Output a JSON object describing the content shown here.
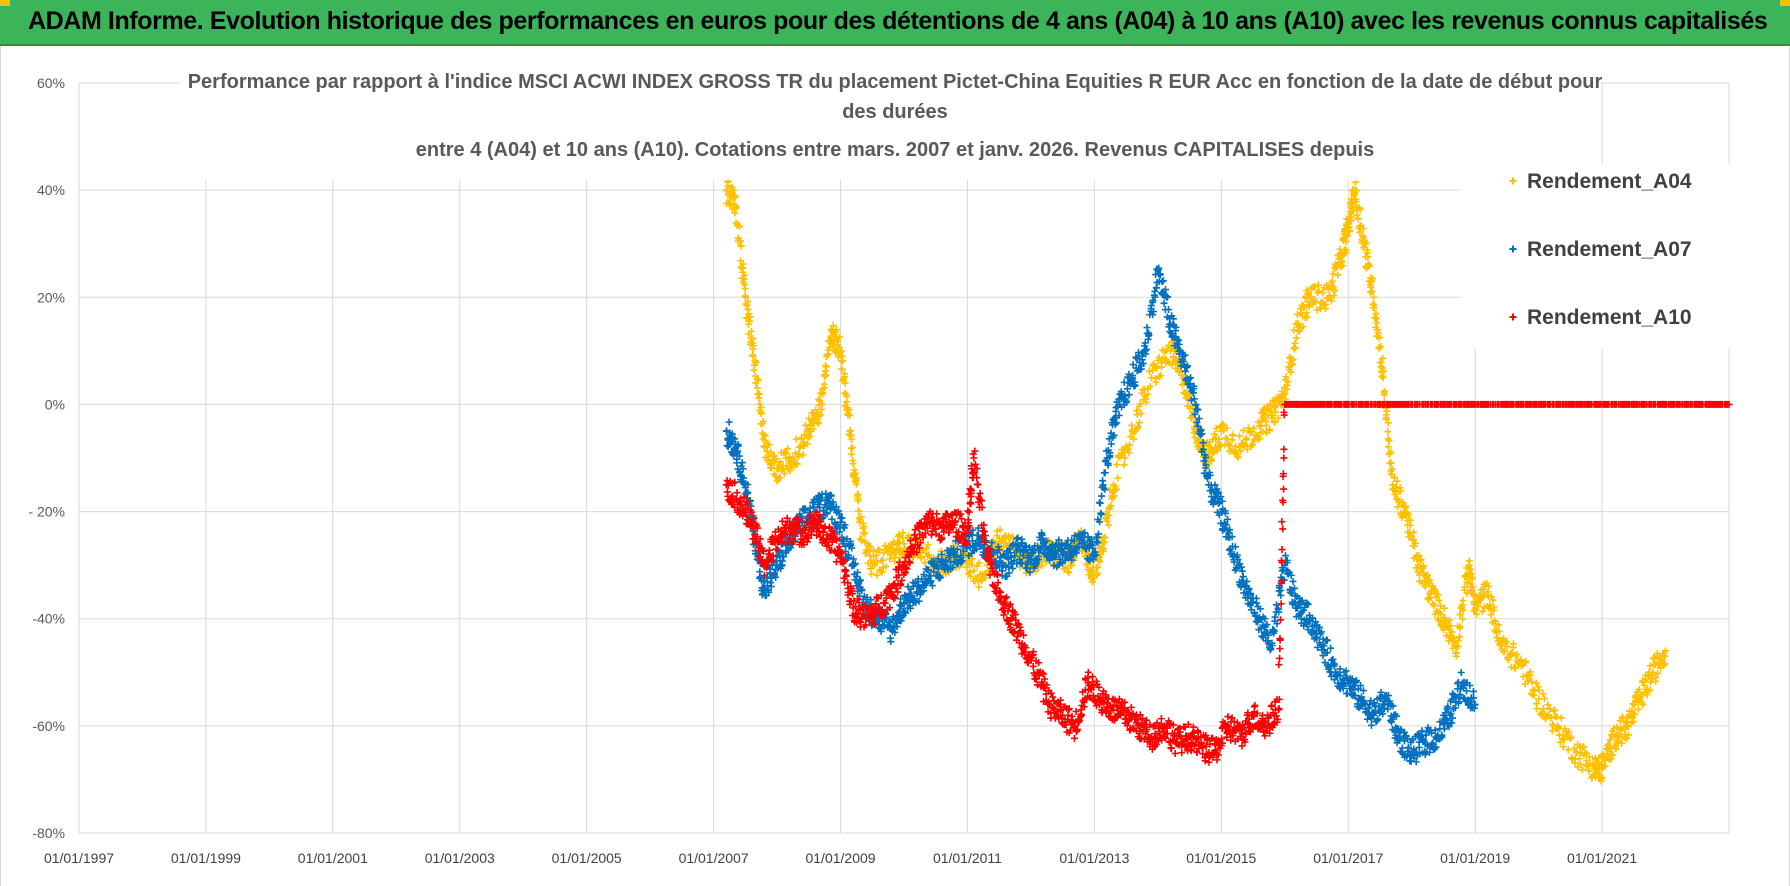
{
  "banner": {
    "text": "ADAM Informe. Evolution historique des performances en euros pour des détentions de 4 ans (A04) à 10 ans (A10) avec les revenus connus capitalisés"
  },
  "colors": {
    "banner": "#3cb55a",
    "accent": "#f2c200",
    "A04": "#ffc000",
    "A07": "#0070c0",
    "A10": "#ff0000",
    "grid": "#d9d9d9"
  },
  "chart_data": {
    "type": "scatter",
    "title_lines": [
      "Performance par rapport à l'indice MSCI ACWI INDEX GROSS TR  du placement Pictet-China Equities R EUR Acc en fonction de la date de début pour",
      "des durées",
      "entre 4 (A04) et 10 ans (A10). Cotations entre mars. 2007 et janv. 2026. Revenus CAPITALISES depuis"
    ],
    "xlabel": "",
    "ylabel": "",
    "xlim": [
      1997.0,
      2023.0
    ],
    "ylim": [
      -80,
      60
    ],
    "y_ticks": [
      60,
      40,
      20,
      0,
      -20,
      -40,
      -60,
      -80
    ],
    "y_tick_labels": [
      "60%",
      "40%",
      "20%",
      "0%",
      "- 20%",
      "-40%",
      "-60%",
      "-80%"
    ],
    "x_ticks": [
      1997,
      1999,
      2001,
      2003,
      2005,
      2007,
      2009,
      2011,
      2013,
      2015,
      2017,
      2019,
      2021
    ],
    "x_tick_labels": [
      "01/01/1997",
      "01/01/1999",
      "01/01/2001",
      "01/01/2003",
      "01/01/2005",
      "01/01/2007",
      "01/01/2009",
      "01/01/2011",
      "01/01/2013",
      "01/01/2015",
      "01/01/2017",
      "01/01/2019",
      "01/01/2021"
    ],
    "grid": true,
    "legend_position": "top-right",
    "series": [
      {
        "name": "Rendement_A04",
        "color": "#ffc000",
        "x": [
          2007.2,
          2007.35,
          2007.5,
          2007.65,
          2007.8,
          2008.0,
          2008.25,
          2008.5,
          2008.7,
          2008.85,
          2009.0,
          2009.15,
          2009.3,
          2009.5,
          2009.8,
          2010.0,
          2010.3,
          2010.6,
          2010.9,
          2011.2,
          2011.5,
          2011.8,
          2012.0,
          2012.3,
          2012.6,
          2012.8,
          2012.95,
          2013.1,
          2013.3,
          2013.6,
          2013.9,
          2014.2,
          2014.4,
          2014.6,
          2014.8,
          2015.0,
          2015.3,
          2015.6,
          2015.8,
          2016.0,
          2016.2,
          2016.4,
          2016.7,
          2016.9,
          2017.0,
          2017.1,
          2017.25,
          2017.4,
          2017.55,
          2017.7,
          2017.9,
          2018.1,
          2018.3,
          2018.5,
          2018.7,
          2018.9,
          2019.0,
          2019.2,
          2019.4,
          2019.7,
          2020.0,
          2020.3,
          2020.6,
          2020.9,
          2021.0,
          2021.2,
          2021.4,
          2021.6,
          2021.8,
          2022.0
        ],
        "y": [
          40,
          37,
          20,
          8,
          -8,
          -12,
          -10,
          -5,
          0,
          14,
          10,
          -5,
          -22,
          -30,
          -28,
          -26,
          -27,
          -30,
          -28,
          -32,
          -25,
          -28,
          -30,
          -27,
          -29,
          -25,
          -32,
          -28,
          -15,
          -5,
          5,
          10,
          5,
          -5,
          -10,
          -5,
          -8,
          -4,
          -2,
          2,
          15,
          20,
          20,
          28,
          33,
          40,
          30,
          20,
          5,
          -15,
          -20,
          -30,
          -35,
          -40,
          -45,
          -30,
          -38,
          -35,
          -45,
          -48,
          -55,
          -60,
          -65,
          -68,
          -68,
          -62,
          -60,
          -55,
          -50,
          -46
        ]
      },
      {
        "name": "Rendement_A07",
        "color": "#0070c0",
        "x": [
          2007.2,
          2007.35,
          2007.5,
          2007.65,
          2007.8,
          2008.0,
          2008.2,
          2008.4,
          2008.6,
          2008.8,
          2009.0,
          2009.2,
          2009.4,
          2009.6,
          2009.8,
          2010.0,
          2010.2,
          2010.4,
          2010.6,
          2010.8,
          2011.0,
          2011.2,
          2011.4,
          2011.6,
          2011.8,
          2012.0,
          2012.2,
          2012.4,
          2012.6,
          2012.8,
          2013.0,
          2013.2,
          2013.4,
          2013.6,
          2013.8,
          2014.0,
          2014.2,
          2014.4,
          2014.6,
          2014.8,
          2015.0,
          2015.2,
          2015.4,
          2015.6,
          2015.8,
          2016.0,
          2016.2,
          2016.4,
          2016.6,
          2016.8,
          2017.0,
          2017.2,
          2017.4,
          2017.6,
          2017.8,
          2018.0,
          2018.2,
          2018.4,
          2018.6,
          2018.8,
          2019.0
        ],
        "y": [
          -5,
          -8,
          -15,
          -25,
          -35,
          -30,
          -25,
          -22,
          -20,
          -18,
          -22,
          -30,
          -38,
          -40,
          -42,
          -37,
          -35,
          -32,
          -30,
          -28,
          -26,
          -25,
          -28,
          -30,
          -27,
          -29,
          -26,
          -28,
          -27,
          -26,
          -28,
          -10,
          0,
          5,
          10,
          25,
          15,
          8,
          0,
          -15,
          -20,
          -28,
          -35,
          -40,
          -45,
          -30,
          -38,
          -40,
          -45,
          -50,
          -52,
          -55,
          -58,
          -55,
          -62,
          -65,
          -63,
          -62,
          -58,
          -52,
          -56
        ]
      },
      {
        "name": "Rendement_A10",
        "color": "#ff0000",
        "x": [
          2007.2,
          2007.4,
          2007.6,
          2007.8,
          2008.0,
          2008.2,
          2008.4,
          2008.6,
          2008.8,
          2009.0,
          2009.2,
          2009.4,
          2009.6,
          2009.8,
          2010.0,
          2010.2,
          2010.4,
          2010.6,
          2010.8,
          2011.0,
          2011.1,
          2011.3,
          2011.5,
          2011.7,
          2011.9,
          2012.1,
          2012.3,
          2012.5,
          2012.7,
          2012.9,
          2013.1,
          2013.3,
          2013.5,
          2013.7,
          2013.9,
          2014.1,
          2014.3,
          2014.5,
          2014.7,
          2014.9,
          2015.1,
          2015.3,
          2015.5,
          2015.7,
          2015.9,
          2016.0,
          2016.2,
          2016.5,
          2017.0,
          2017.5,
          2018.0,
          2018.5,
          2019.0,
          2019.5,
          2020.0,
          2020.5,
          2021.0,
          2021.5,
          2022.0,
          2022.5,
          2023.0
        ],
        "y": [
          -15,
          -18,
          -22,
          -30,
          -25,
          -23,
          -24,
          -22,
          -25,
          -28,
          -38,
          -40,
          -38,
          -35,
          -30,
          -25,
          -22,
          -23,
          -22,
          -24,
          -10,
          -28,
          -35,
          -40,
          -45,
          -50,
          -56,
          -58,
          -60,
          -52,
          -55,
          -57,
          -58,
          -60,
          -62,
          -60,
          -63,
          -62,
          -64,
          -65,
          -60,
          -62,
          -58,
          -60,
          -57,
          0,
          0,
          0,
          0,
          0,
          0,
          0,
          0,
          0,
          0,
          0,
          0,
          0,
          0,
          0,
          0
        ]
      }
    ]
  }
}
